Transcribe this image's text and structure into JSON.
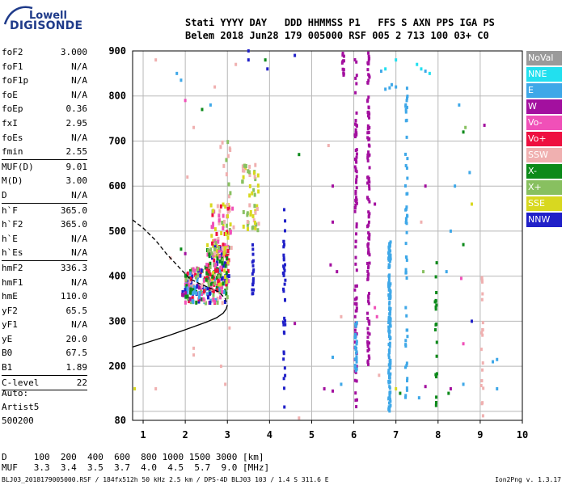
{
  "logo": {
    "line1": "Lowell",
    "line2": "DIGISONDE",
    "color": "#1f3b8a"
  },
  "header": {
    "line1": "Stati YYYY DAY   DDD HHMMSS P1   FFS S AXN PPS IGA PS",
    "line2": "Belem 2018 Jun28 179 005000 RSF 005 2 713 100 03+ C0"
  },
  "params": [
    {
      "k": "foF2",
      "v": "3.000"
    },
    {
      "k": "foF1",
      "v": "N/A"
    },
    {
      "k": "foF1p",
      "v": "N/A"
    },
    {
      "k": "foE",
      "v": "N/A"
    },
    {
      "k": "foEp",
      "v": "0.36"
    },
    {
      "k": "fxI",
      "v": "2.95"
    },
    {
      "k": "foEs",
      "v": "N/A"
    },
    {
      "k": "fmin",
      "v": "2.55"
    },
    {
      "k": "MUF(D)",
      "v": "9.01",
      "sep": true
    },
    {
      "k": "M(D)",
      "v": "3.00"
    },
    {
      "k": "D",
      "v": "N/A"
    },
    {
      "k": "h`F",
      "v": "365.0",
      "sep": true
    },
    {
      "k": "h`F2",
      "v": "365.0"
    },
    {
      "k": "h`E",
      "v": "N/A"
    },
    {
      "k": "h`Es",
      "v": "N/A"
    },
    {
      "k": "hmF2",
      "v": "336.3",
      "sep": true
    },
    {
      "k": "hmF1",
      "v": "N/A"
    },
    {
      "k": "hmE",
      "v": "110.0"
    },
    {
      "k": "yF2",
      "v": "65.5"
    },
    {
      "k": "yF1",
      "v": "N/A"
    },
    {
      "k": "yE",
      "v": "20.0"
    },
    {
      "k": "B0",
      "v": "67.5"
    },
    {
      "k": "B1",
      "v": "1.89"
    },
    {
      "k": "C-level",
      "v": "22",
      "sep": true
    }
  ],
  "auto": {
    "label": "Auto:",
    "artist": "Artist5",
    "version": "500200"
  },
  "legend": [
    {
      "label": "NoVal",
      "color": "#9a9a9a"
    },
    {
      "label": "NNE",
      "color": "#22e0ef"
    },
    {
      "label": "E",
      "color": "#3fa8e8"
    },
    {
      "label": "W",
      "color": "#a3109f"
    },
    {
      "label": "Vo-",
      "color": "#f050b8"
    },
    {
      "label": "Vo+",
      "color": "#ee1040"
    },
    {
      "label": "SSW",
      "color": "#f0b0b0"
    },
    {
      "label": "X-",
      "color": "#0c8a1a"
    },
    {
      "label": "X+",
      "color": "#88c060"
    },
    {
      "label": "SSE",
      "color": "#d8d820"
    },
    {
      "label": "NNW",
      "color": "#2020c8"
    }
  ],
  "dmuf": {
    "line1": "D     100  200  400  600  800 1000 1500 3000 [km]",
    "line2": "MUF   3.3  3.4  3.5  3.7  4.0  4.5  5.7  9.0 [MHz]"
  },
  "footer": {
    "left": "BLJ03_2018179005000.RSF / 184fx512h 50 kHz 2.5 km / DPS-4D BLJ03 103 / 1.4 S 311.6 E",
    "right": "Ion2Png v. 1.3.17"
  },
  "chart_data": {
    "type": "scatter",
    "xlim": [
      0.75,
      10
    ],
    "ylim": [
      80,
      900
    ],
    "xticks": [
      1,
      2,
      3,
      4,
      5,
      6,
      7,
      8,
      9,
      10
    ],
    "yticks": [
      80,
      100,
      200,
      300,
      400,
      500,
      600,
      700,
      800,
      900
    ],
    "ytick_labels_shown": [
      80,
      200,
      300,
      400,
      500,
      600,
      700,
      800,
      900
    ],
    "grid": true,
    "trace_profile": [
      [
        0.75,
        243
      ],
      [
        1.0,
        250
      ],
      [
        1.3,
        259
      ],
      [
        1.6,
        268
      ],
      [
        1.9,
        278
      ],
      [
        2.2,
        288
      ],
      [
        2.5,
        298
      ],
      [
        2.75,
        308
      ],
      [
        2.9,
        318
      ],
      [
        2.97,
        327
      ],
      [
        3.0,
        336
      ]
    ],
    "trace_model": [
      [
        0.75,
        525
      ],
      [
        1.0,
        507
      ],
      [
        1.3,
        479
      ],
      [
        1.55,
        450
      ],
      [
        1.75,
        430
      ],
      [
        1.95,
        410
      ],
      [
        2.1,
        395
      ],
      [
        2.3,
        385
      ],
      [
        2.55,
        375
      ],
      [
        2.8,
        365
      ],
      [
        2.95,
        350
      ],
      [
        3.0,
        338
      ]
    ],
    "clusters": [
      {
        "x": [
          2.0,
          3.0
        ],
        "y": [
          340,
          420
        ],
        "n": 180,
        "colors": [
          "#ee1040",
          "#f050b8",
          "#0c8a1a",
          "#2020c8",
          "#f0b0b0",
          "#88c060",
          "#3fa8e8"
        ]
      },
      {
        "x": [
          2.5,
          3.05
        ],
        "y": [
          380,
          470
        ],
        "n": 120,
        "colors": [
          "#ee1040",
          "#f050b8",
          "#0c8a1a",
          "#2020c8",
          "#d8d820",
          "#88c060"
        ]
      },
      {
        "x": [
          2.6,
          3.15
        ],
        "y": [
          450,
          560
        ],
        "n": 70,
        "colors": [
          "#f0b0b0",
          "#88c060",
          "#ee1040",
          "#d8d820",
          "#f050b8"
        ]
      },
      {
        "x": [
          3.35,
          3.75
        ],
        "y": [
          500,
          650
        ],
        "n": 55,
        "colors": [
          "#f0b0b0",
          "#d8d820",
          "#88c060"
        ]
      },
      {
        "x": [
          1.9,
          2.35
        ],
        "y": [
          345,
          380
        ],
        "n": 30,
        "colors": [
          "#0c8a1a",
          "#2020c8",
          "#a3109f",
          "#3fa8e8"
        ]
      },
      {
        "x": [
          2.8,
          3.1
        ],
        "y": [
          560,
          700
        ],
        "n": 12,
        "colors": [
          "#f0b0b0",
          "#88c060"
        ]
      }
    ],
    "columns": [
      {
        "x": 4.35,
        "y": [
          100,
          560
        ],
        "n": 40,
        "color": "#2020c8"
      },
      {
        "x": 3.6,
        "y": [
          360,
          470
        ],
        "n": 18,
        "color": "#2020c8"
      },
      {
        "x": 6.05,
        "y": [
          90,
          900
        ],
        "n": 90,
        "color": "#a3109f"
      },
      {
        "x": 6.35,
        "y": [
          200,
          900
        ],
        "n": 110,
        "color": "#a3109f"
      },
      {
        "x": 5.75,
        "y": [
          840,
          900
        ],
        "n": 12,
        "color": "#a3109f"
      },
      {
        "x": 6.85,
        "y": [
          100,
          480
        ],
        "n": 150,
        "color": "#3fa8e8"
      },
      {
        "x": 7.25,
        "y": [
          120,
          820
        ],
        "n": 55,
        "color": "#3fa8e8"
      },
      {
        "x": 7.95,
        "y": [
          110,
          460
        ],
        "n": 20,
        "color": "#0c8a1a"
      },
      {
        "x": 9.05,
        "y": [
          80,
          420
        ],
        "n": 20,
        "color": "#f0b0b0"
      },
      {
        "x": 6.05,
        "y": [
          190,
          300
        ],
        "n": 25,
        "color": "#3fa8e8"
      }
    ],
    "sparse": [
      {
        "x": 1.3,
        "y": 880,
        "c": "#f0b0b0"
      },
      {
        "x": 1.8,
        "y": 850,
        "c": "#3fa8e8"
      },
      {
        "x": 1.9,
        "y": 835,
        "c": "#3fa8e8"
      },
      {
        "x": 2.0,
        "y": 790,
        "c": "#f050b8"
      },
      {
        "x": 2.05,
        "y": 620,
        "c": "#f0b0b0"
      },
      {
        "x": 2.0,
        "y": 450,
        "c": "#a3109f"
      },
      {
        "x": 2.6,
        "y": 780,
        "c": "#3fa8e8"
      },
      {
        "x": 2.4,
        "y": 770,
        "c": "#0c8a1a"
      },
      {
        "x": 2.7,
        "y": 820,
        "c": "#f0b0b0"
      },
      {
        "x": 1.3,
        "y": 150,
        "c": "#f0b0b0"
      },
      {
        "x": 0.8,
        "y": 150,
        "c": "#d8d820"
      },
      {
        "x": 2.2,
        "y": 240,
        "c": "#f0b0b0"
      },
      {
        "x": 2.2,
        "y": 225,
        "c": "#f0b0b0"
      },
      {
        "x": 2.85,
        "y": 200,
        "c": "#f0b0b0"
      },
      {
        "x": 2.95,
        "y": 160,
        "c": "#f0b0b0"
      },
      {
        "x": 3.05,
        "y": 285,
        "c": "#f0b0b0"
      },
      {
        "x": 3.5,
        "y": 900,
        "c": "#2020c8"
      },
      {
        "x": 3.5,
        "y": 880,
        "c": "#2020c8"
      },
      {
        "x": 3.9,
        "y": 880,
        "c": "#0c8a1a"
      },
      {
        "x": 4.6,
        "y": 890,
        "c": "#2020c8"
      },
      {
        "x": 4.7,
        "y": 670,
        "c": "#0c8a1a"
      },
      {
        "x": 4.7,
        "y": 85,
        "c": "#f0b0b0"
      },
      {
        "x": 5.4,
        "y": 690,
        "c": "#f0b0b0"
      },
      {
        "x": 5.5,
        "y": 600,
        "c": "#a3109f"
      },
      {
        "x": 5.5,
        "y": 520,
        "c": "#a3109f"
      },
      {
        "x": 5.45,
        "y": 425,
        "c": "#a3109f"
      },
      {
        "x": 5.6,
        "y": 410,
        "c": "#a3109f"
      },
      {
        "x": 5.5,
        "y": 220,
        "c": "#3fa8e8"
      },
      {
        "x": 5.7,
        "y": 310,
        "c": "#f0b0b0"
      },
      {
        "x": 5.7,
        "y": 160,
        "c": "#3fa8e8"
      },
      {
        "x": 5.3,
        "y": 150,
        "c": "#a3109f"
      },
      {
        "x": 5.5,
        "y": 145,
        "c": "#a3109f"
      },
      {
        "x": 4.6,
        "y": 295,
        "c": "#a3109f"
      },
      {
        "x": 7.5,
        "y": 870,
        "c": "#22e0ef"
      },
      {
        "x": 7.6,
        "y": 860,
        "c": "#22e0ef"
      },
      {
        "x": 7.7,
        "y": 855,
        "c": "#3fa8e8"
      },
      {
        "x": 7.0,
        "y": 820,
        "c": "#3fa8e8"
      },
      {
        "x": 6.75,
        "y": 815,
        "c": "#3fa8e8"
      },
      {
        "x": 6.85,
        "y": 818,
        "c": "#3fa8e8"
      },
      {
        "x": 6.9,
        "y": 825,
        "c": "#3fa8e8"
      },
      {
        "x": 7.0,
        "y": 880,
        "c": "#22e0ef"
      },
      {
        "x": 6.75,
        "y": 860,
        "c": "#22e0ef"
      },
      {
        "x": 6.65,
        "y": 855,
        "c": "#3fa8e8"
      },
      {
        "x": 7.8,
        "y": 850,
        "c": "#22e0ef"
      },
      {
        "x": 8.5,
        "y": 780,
        "c": "#3fa8e8"
      },
      {
        "x": 8.6,
        "y": 720,
        "c": "#0c8a1a"
      },
      {
        "x": 8.65,
        "y": 730,
        "c": "#88c060"
      },
      {
        "x": 8.75,
        "y": 630,
        "c": "#3fa8e8"
      },
      {
        "x": 8.8,
        "y": 560,
        "c": "#d8d820"
      },
      {
        "x": 9.1,
        "y": 735,
        "c": "#a3109f"
      },
      {
        "x": 8.4,
        "y": 600,
        "c": "#3fa8e8"
      },
      {
        "x": 8.3,
        "y": 500,
        "c": "#3fa8e8"
      },
      {
        "x": 8.6,
        "y": 470,
        "c": "#0c8a1a"
      },
      {
        "x": 7.7,
        "y": 600,
        "c": "#a3109f"
      },
      {
        "x": 7.6,
        "y": 520,
        "c": "#f0b0b0"
      },
      {
        "x": 8.2,
        "y": 410,
        "c": "#3fa8e8"
      },
      {
        "x": 7.65,
        "y": 410,
        "c": "#88c060"
      },
      {
        "x": 8.55,
        "y": 395,
        "c": "#f050b8"
      },
      {
        "x": 8.8,
        "y": 300,
        "c": "#2020c8"
      },
      {
        "x": 8.6,
        "y": 250,
        "c": "#f050b8"
      },
      {
        "x": 9.3,
        "y": 210,
        "c": "#3fa8e8"
      },
      {
        "x": 9.4,
        "y": 215,
        "c": "#3fa8e8"
      },
      {
        "x": 9.4,
        "y": 150,
        "c": "#3fa8e8"
      },
      {
        "x": 8.3,
        "y": 150,
        "c": "#a3109f"
      },
      {
        "x": 8.25,
        "y": 140,
        "c": "#0c8a1a"
      },
      {
        "x": 7.7,
        "y": 155,
        "c": "#a3109f"
      },
      {
        "x": 7.1,
        "y": 140,
        "c": "#0c8a1a"
      },
      {
        "x": 7.0,
        "y": 150,
        "c": "#d8d820"
      },
      {
        "x": 6.6,
        "y": 180,
        "c": "#f0b0b0"
      },
      {
        "x": 6.5,
        "y": 330,
        "c": "#f050b8"
      },
      {
        "x": 6.55,
        "y": 310,
        "c": "#f050b8"
      },
      {
        "x": 6.5,
        "y": 560,
        "c": "#a3109f"
      },
      {
        "x": 8.6,
        "y": 160,
        "c": "#3fa8e8"
      },
      {
        "x": 7.55,
        "y": 130,
        "c": "#3fa8e8"
      },
      {
        "x": 2.2,
        "y": 730,
        "c": "#f0b0b0"
      },
      {
        "x": 3.2,
        "y": 870,
        "c": "#f0b0b0"
      },
      {
        "x": 3.95,
        "y": 860,
        "c": "#2020c8"
      },
      {
        "x": 1.9,
        "y": 460,
        "c": "#0c8a1a"
      },
      {
        "x": 1.65,
        "y": 440,
        "c": "#f0b0b0"
      }
    ]
  }
}
